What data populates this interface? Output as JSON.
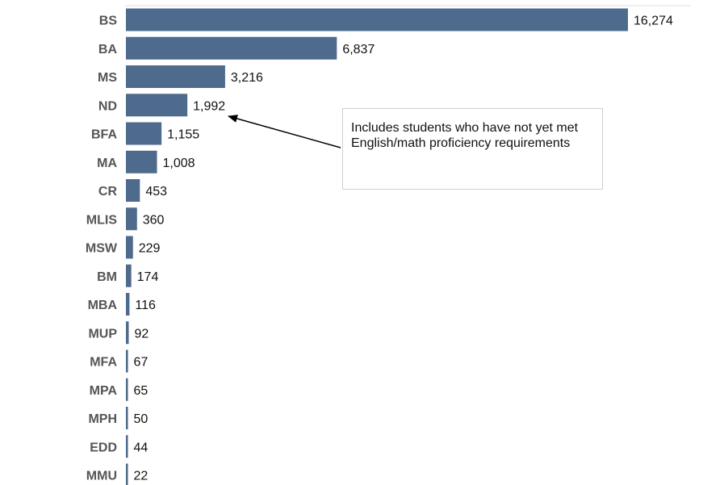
{
  "chart_data": {
    "type": "bar",
    "orientation": "horizontal",
    "categories": [
      "BS",
      "BA",
      "MS",
      "ND",
      "BFA",
      "MA",
      "CR",
      "MLIS",
      "MSW",
      "BM",
      "MBA",
      "MUP",
      "MFA",
      "MPA",
      "MPH",
      "EDD",
      "MMU"
    ],
    "values": [
      16274,
      6837,
      3216,
      1992,
      1155,
      1008,
      453,
      360,
      229,
      174,
      116,
      92,
      67,
      65,
      50,
      44,
      22
    ],
    "value_labels": [
      "16,274",
      "6,837",
      "3,216",
      "1,992",
      "1,155",
      "1,008",
      "453",
      "360",
      "229",
      "174",
      "116",
      "92",
      "67",
      "65",
      "50",
      "44",
      "22"
    ],
    "title": "",
    "xlabel": "",
    "ylabel": "",
    "xlim": [
      0,
      16274
    ],
    "grid": false,
    "bar_color": "#4e6a8c",
    "annotations": [
      {
        "target_category": "ND",
        "text": "Includes students who have not yet met English/math proficiency requirements"
      }
    ]
  }
}
